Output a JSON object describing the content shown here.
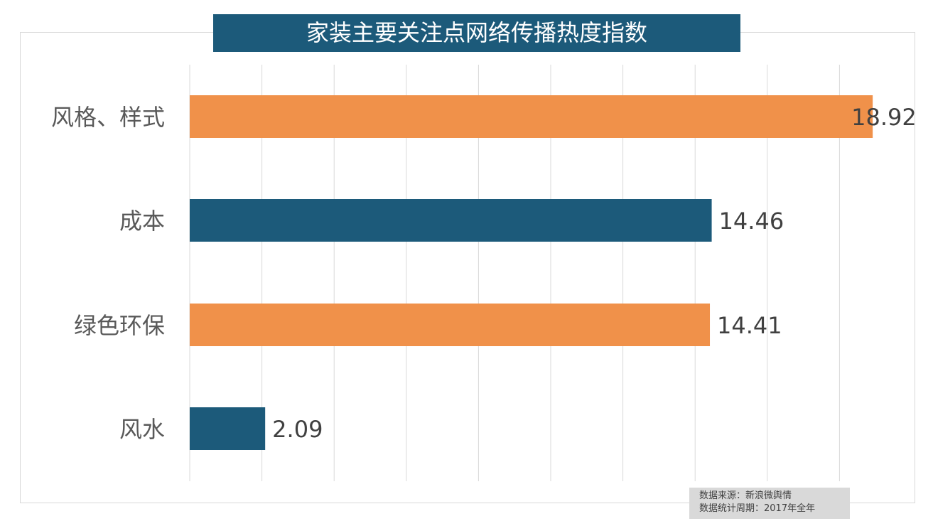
{
  "chart_data": {
    "type": "bar",
    "orientation": "horizontal",
    "title": "家装主要关注点网络传播热度指数",
    "categories": [
      "风格、样式",
      "成本",
      "绿色环保",
      "风水"
    ],
    "values": [
      18.92,
      14.46,
      14.41,
      2.09
    ],
    "colors": [
      "#f0914a",
      "#1c5a7a",
      "#f0914a",
      "#1c5a7a"
    ],
    "xlim": [
      0,
      20
    ],
    "grid_step": 2,
    "grid": true,
    "data_labels": [
      "18.92",
      "14.46",
      "14.41",
      "2.09"
    ]
  },
  "source": {
    "line1": "数据来源：新浪微舆情",
    "line2": "数据统计周期：2017年全年"
  }
}
